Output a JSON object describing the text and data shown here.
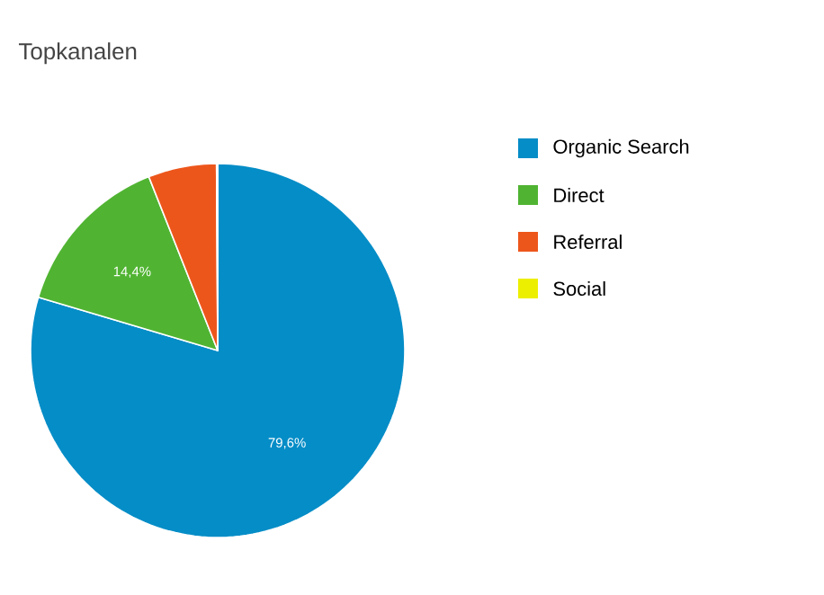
{
  "chart_data": {
    "type": "pie",
    "title": "Topkanalen",
    "categories": [
      "Organic Search",
      "Direct",
      "Referral",
      "Social"
    ],
    "values": [
      79.6,
      14.4,
      5.9,
      0.1
    ],
    "colors": [
      "#058dc7",
      "#50b432",
      "#ed561b",
      "#edef00"
    ],
    "value_labels": [
      "79,6%",
      "14,4%",
      null,
      null
    ],
    "legend": "right"
  }
}
